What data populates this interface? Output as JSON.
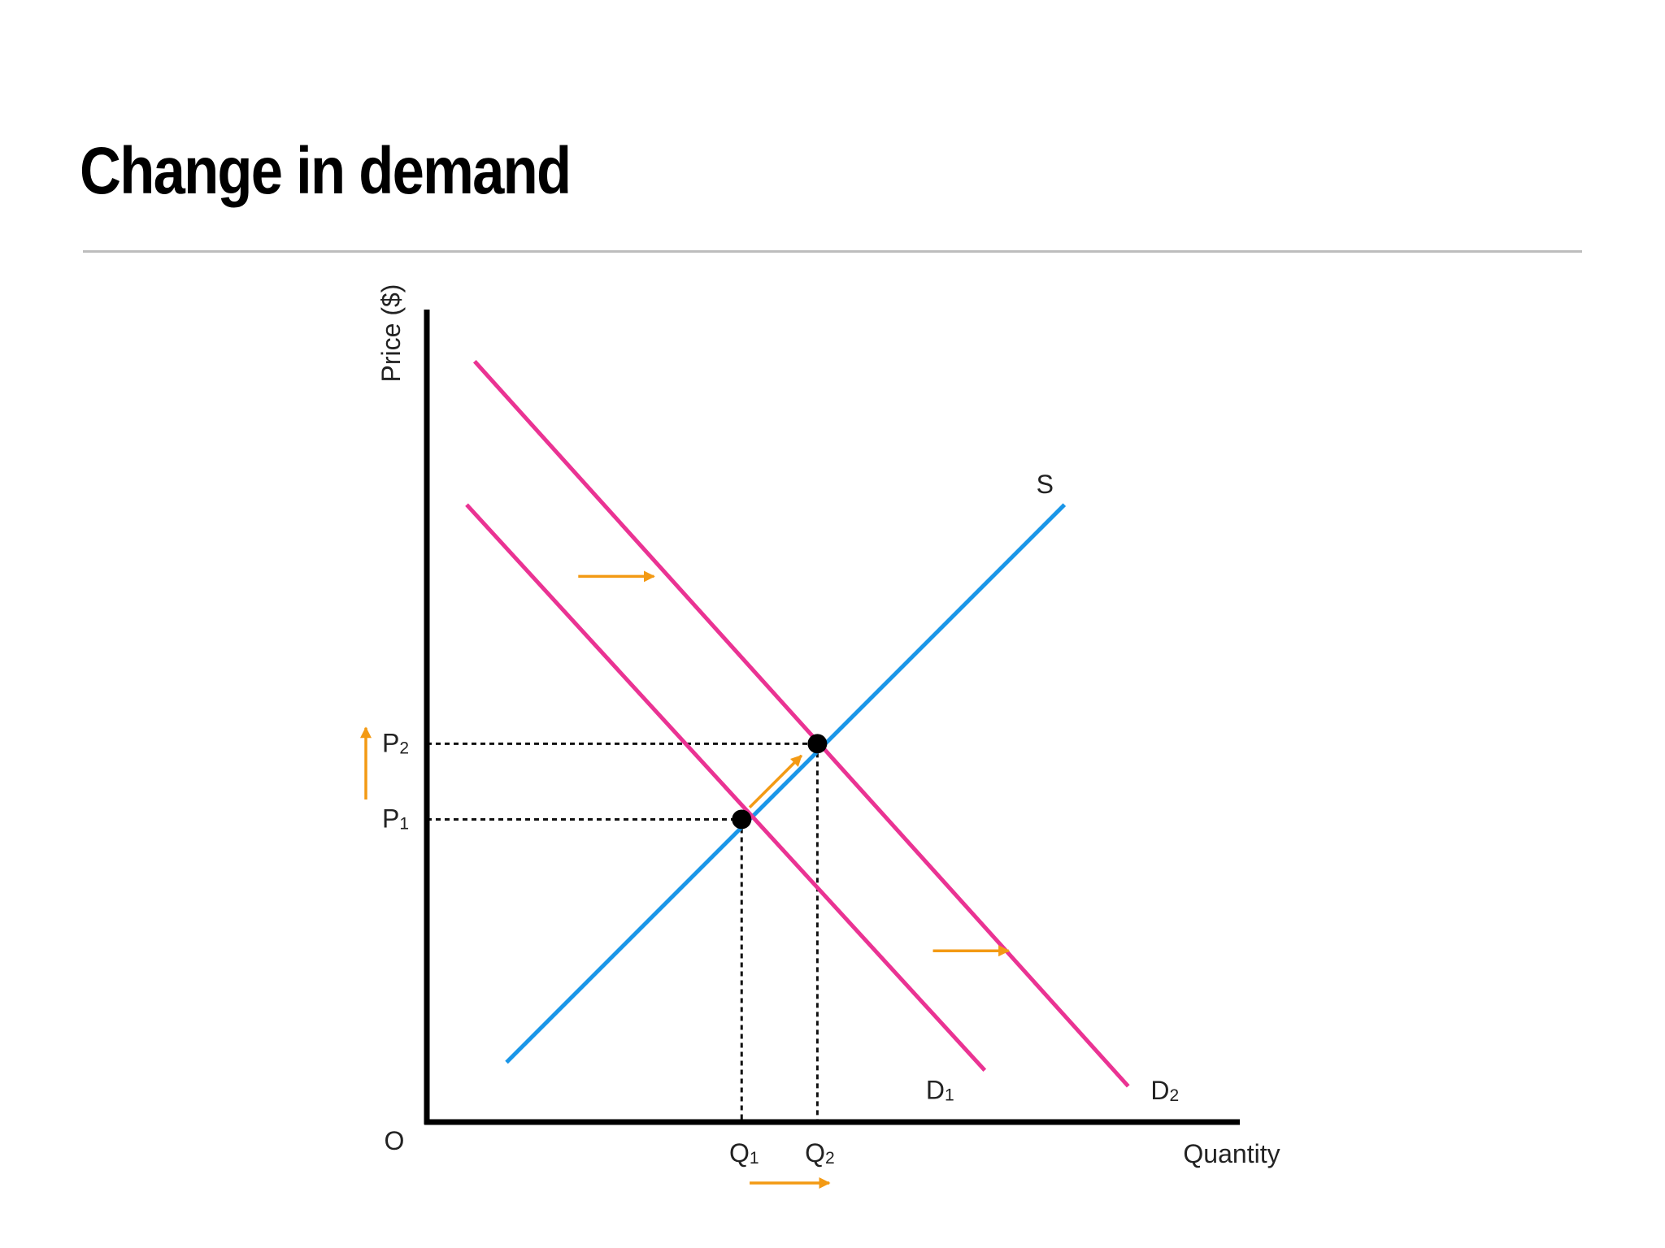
{
  "title": "Change in demand",
  "chart_data": {
    "type": "line",
    "title": "",
    "xlabel": "Quantity",
    "ylabel": "Price ($)",
    "origin_label": "O",
    "series": [
      {
        "name": "S",
        "main": "S",
        "sub": "",
        "color": "#1a96e8",
        "points": [
          [
            1.0,
            0.75
          ],
          [
            8.0,
            7.75
          ]
        ]
      },
      {
        "name": "D1",
        "main": "D",
        "sub": "1",
        "color": "#ea3393",
        "points": [
          [
            0.5,
            7.75
          ],
          [
            7.0,
            0.65
          ]
        ]
      },
      {
        "name": "D2",
        "main": "D",
        "sub": "2",
        "color": "#ea3393",
        "points": [
          [
            0.6,
            9.55
          ],
          [
            8.8,
            0.45
          ]
        ]
      }
    ],
    "equilibria": [
      {
        "q": 3.95,
        "p": 3.8,
        "q_main": "Q",
        "q_sub": "1",
        "p_main": "P",
        "p_sub": "1"
      },
      {
        "q": 4.9,
        "p": 4.75,
        "q_main": "Q",
        "q_sub": "2",
        "p_main": "P",
        "p_sub": "2"
      }
    ],
    "shift_arrows": [
      {
        "from": [
          1.9,
          6.85
        ],
        "to": [
          2.85,
          6.85
        ]
      },
      {
        "from": [
          6.35,
          2.15
        ],
        "to": [
          7.3,
          2.15
        ]
      },
      {
        "from": [
          4.05,
          3.95
        ],
        "to": [
          4.7,
          4.6
        ]
      }
    ],
    "axis_arrows": [
      {
        "axis": "x",
        "from": 4.05,
        "to": 5.05
      },
      {
        "axis": "y",
        "from": 4.05,
        "to": 4.95
      }
    ],
    "arrow_color": "#f39a14",
    "xlim": [
      0,
      10.2
    ],
    "ylim": [
      0,
      10.2
    ],
    "grid": false,
    "legend": "none"
  }
}
